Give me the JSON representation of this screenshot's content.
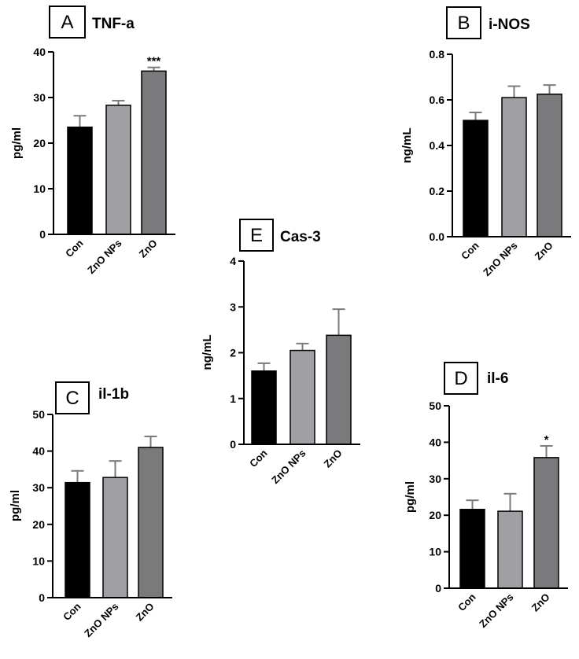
{
  "colors": {
    "Con": "#000000",
    "ZnO NPs": "#a0a0a4",
    "ZnO": "#7a7a7c",
    "axis": "#000000",
    "error_bar": "#7a7a7a"
  },
  "chart_data": [
    {
      "id": "A",
      "type": "bar",
      "letter": "A",
      "title": "TNF-a",
      "ylabel": "pg/ml",
      "ylim": [
        0,
        40
      ],
      "yticks": [
        "0",
        "10",
        "20",
        "30",
        "40"
      ],
      "categories": [
        "Con",
        "ZnO NPs",
        "ZnO"
      ],
      "values": [
        23.5,
        28.3,
        35.8
      ],
      "errors": [
        2.5,
        1.0,
        0.8
      ],
      "significance": [
        "",
        "",
        "***"
      ]
    },
    {
      "id": "B",
      "type": "bar",
      "letter": "B",
      "title": "i-NOS",
      "ylabel": "ng/mL",
      "ylim": [
        0,
        0.8
      ],
      "yticks": [
        "0.0",
        "0.2",
        "0.4",
        "0.6",
        "0.8"
      ],
      "categories": [
        "Con",
        "ZnO NPs",
        "ZnO"
      ],
      "values": [
        0.51,
        0.61,
        0.625
      ],
      "errors": [
        0.035,
        0.05,
        0.04
      ],
      "significance": [
        "",
        "",
        ""
      ]
    },
    {
      "id": "E",
      "type": "bar",
      "letter": "E",
      "title": "Cas-3",
      "ylabel": "ng/mL",
      "ylim": [
        0,
        4
      ],
      "yticks": [
        "0",
        "1",
        "2",
        "3",
        "4"
      ],
      "categories": [
        "Con",
        "ZnO NPs",
        "ZnO"
      ],
      "values": [
        1.6,
        2.05,
        2.38
      ],
      "errors": [
        0.17,
        0.15,
        0.57
      ],
      "significance": [
        "",
        "",
        ""
      ]
    },
    {
      "id": "C",
      "type": "bar",
      "letter": "C",
      "title": "il-1b",
      "ylabel": "pg/ml",
      "ylim": [
        0,
        50
      ],
      "yticks": [
        "0",
        "10",
        "20",
        "30",
        "40",
        "50"
      ],
      "categories": [
        "Con",
        "ZnO NPs",
        "ZnO"
      ],
      "values": [
        31.4,
        32.8,
        41.0
      ],
      "errors": [
        3.2,
        4.5,
        3.0
      ],
      "significance": [
        "",
        "",
        ""
      ]
    },
    {
      "id": "D",
      "type": "bar",
      "letter": "D",
      "title": "il-6",
      "ylabel": "pg/ml",
      "ylim": [
        0,
        50
      ],
      "yticks": [
        "0",
        "10",
        "20",
        "30",
        "40",
        "50"
      ],
      "categories": [
        "Con",
        "ZnO NPs",
        "ZnO"
      ],
      "values": [
        21.6,
        21.1,
        35.8
      ],
      "errors": [
        2.5,
        4.8,
        3.2
      ],
      "significance": [
        "",
        "",
        "*"
      ]
    }
  ]
}
